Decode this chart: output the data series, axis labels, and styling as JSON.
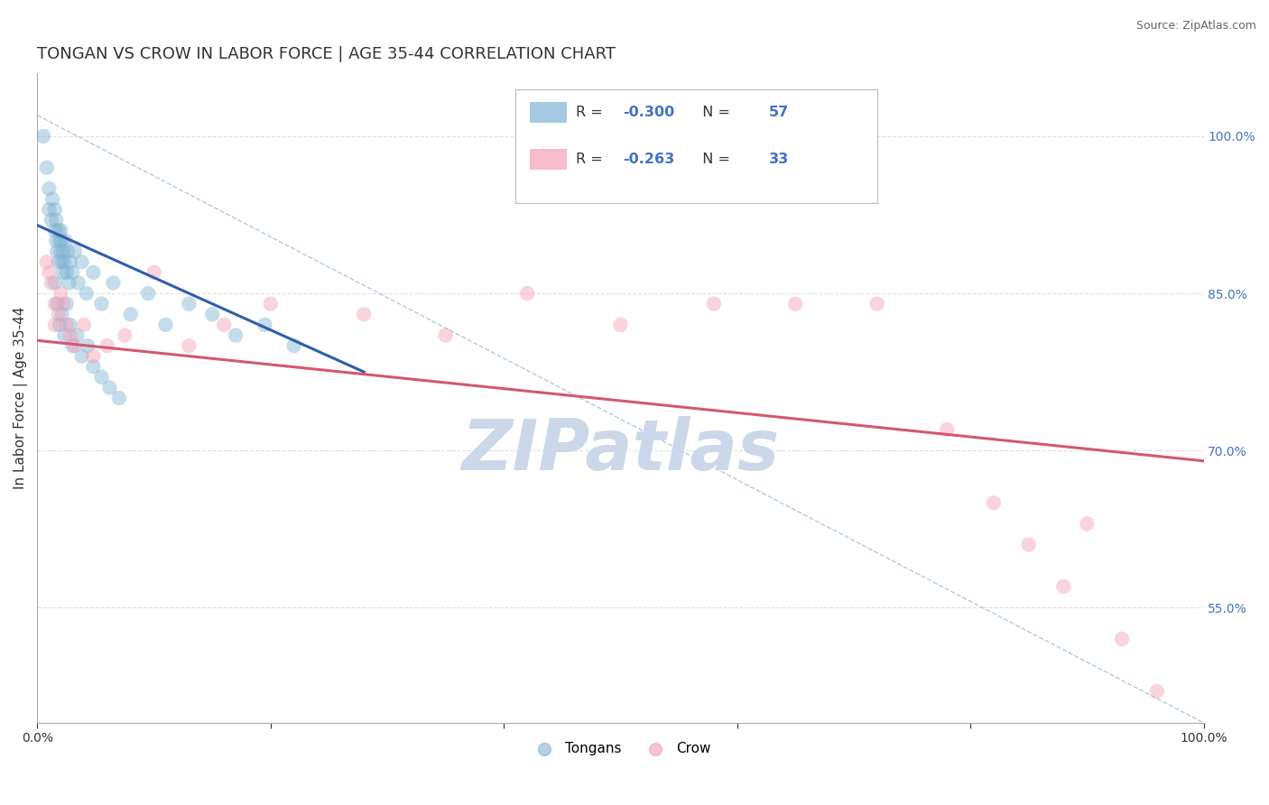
{
  "title": "TONGAN VS CROW IN LABOR FORCE | AGE 35-44 CORRELATION CHART",
  "source": "Source: ZipAtlas.com",
  "xlabel": "",
  "ylabel": "In Labor Force | Age 35-44",
  "xlim": [
    0.0,
    1.0
  ],
  "ylim": [
    0.44,
    1.06
  ],
  "xticks": [
    0.0,
    0.2,
    0.4,
    0.6,
    0.8,
    1.0
  ],
  "xticklabels": [
    "0.0%",
    "",
    "",
    "",
    "",
    "100.0%"
  ],
  "ytick_positions": [
    0.55,
    0.7,
    0.85,
    1.0
  ],
  "yticklabels": [
    "55.0%",
    "70.0%",
    "85.0%",
    "100.0%"
  ],
  "tongans_scatter_x": [
    0.005,
    0.008,
    0.01,
    0.01,
    0.012,
    0.013,
    0.015,
    0.015,
    0.016,
    0.016,
    0.017,
    0.018,
    0.018,
    0.019,
    0.02,
    0.02,
    0.021,
    0.021,
    0.022,
    0.022,
    0.023,
    0.024,
    0.025,
    0.026,
    0.027,
    0.028,
    0.03,
    0.032,
    0.035,
    0.038,
    0.042,
    0.048,
    0.055,
    0.065,
    0.08,
    0.095,
    0.11,
    0.13,
    0.15,
    0.17,
    0.195,
    0.22,
    0.015,
    0.017,
    0.019,
    0.021,
    0.023,
    0.025,
    0.028,
    0.03,
    0.034,
    0.038,
    0.043,
    0.048,
    0.055,
    0.062,
    0.07
  ],
  "tongans_scatter_y": [
    1.0,
    0.97,
    0.95,
    0.93,
    0.92,
    0.94,
    0.91,
    0.93,
    0.9,
    0.92,
    0.89,
    0.91,
    0.88,
    0.9,
    0.89,
    0.91,
    0.88,
    0.9,
    0.87,
    0.89,
    0.88,
    0.9,
    0.87,
    0.89,
    0.86,
    0.88,
    0.87,
    0.89,
    0.86,
    0.88,
    0.85,
    0.87,
    0.84,
    0.86,
    0.83,
    0.85,
    0.82,
    0.84,
    0.83,
    0.81,
    0.82,
    0.8,
    0.86,
    0.84,
    0.82,
    0.83,
    0.81,
    0.84,
    0.82,
    0.8,
    0.81,
    0.79,
    0.8,
    0.78,
    0.77,
    0.76,
    0.75
  ],
  "crow_scatter_x": [
    0.008,
    0.01,
    0.012,
    0.015,
    0.015,
    0.018,
    0.02,
    0.022,
    0.025,
    0.028,
    0.032,
    0.04,
    0.048,
    0.06,
    0.075,
    0.1,
    0.13,
    0.16,
    0.2,
    0.28,
    0.35,
    0.42,
    0.5,
    0.58,
    0.65,
    0.72,
    0.78,
    0.82,
    0.85,
    0.88,
    0.9,
    0.93,
    0.96
  ],
  "crow_scatter_y": [
    0.88,
    0.87,
    0.86,
    0.84,
    0.82,
    0.83,
    0.85,
    0.84,
    0.82,
    0.81,
    0.8,
    0.82,
    0.79,
    0.8,
    0.81,
    0.87,
    0.8,
    0.82,
    0.84,
    0.83,
    0.81,
    0.85,
    0.82,
    0.84,
    0.84,
    0.84,
    0.72,
    0.65,
    0.61,
    0.57,
    0.63,
    0.52,
    0.47
  ],
  "tongan_line_x": [
    0.0,
    0.28
  ],
  "tongan_line_y": [
    0.915,
    0.775
  ],
  "crow_line_x": [
    0.0,
    1.0
  ],
  "crow_line_y": [
    0.805,
    0.69
  ],
  "diag_line_x": [
    0.0,
    1.0
  ],
  "diag_line_y": [
    1.02,
    0.44
  ],
  "tongan_color": "#7fb3d3",
  "crow_color": "#f4a0b5",
  "tongan_line_color": "#2f5faa",
  "crow_line_color": "#d45870",
  "diag_line_color": "#aac4e0",
  "background_color": "#ffffff",
  "grid_color": "#e0e0e0",
  "title_fontsize": 13,
  "axis_label_fontsize": 11,
  "tick_fontsize": 10,
  "legend_fontsize": 12,
  "watermark_text": "ZIPatlas",
  "watermark_color": "#ccd8ea",
  "watermark_fontsize": 56,
  "legend_blue_r": "R = ",
  "legend_blue_r_val": "-0.300",
  "legend_blue_n": "N = ",
  "legend_blue_n_val": "57",
  "legend_pink_r": "R = ",
  "legend_pink_r_val": "-0.263",
  "legend_pink_n": "N = ",
  "legend_pink_n_val": "33",
  "num_color": "#4472c4",
  "text_color": "#333333"
}
